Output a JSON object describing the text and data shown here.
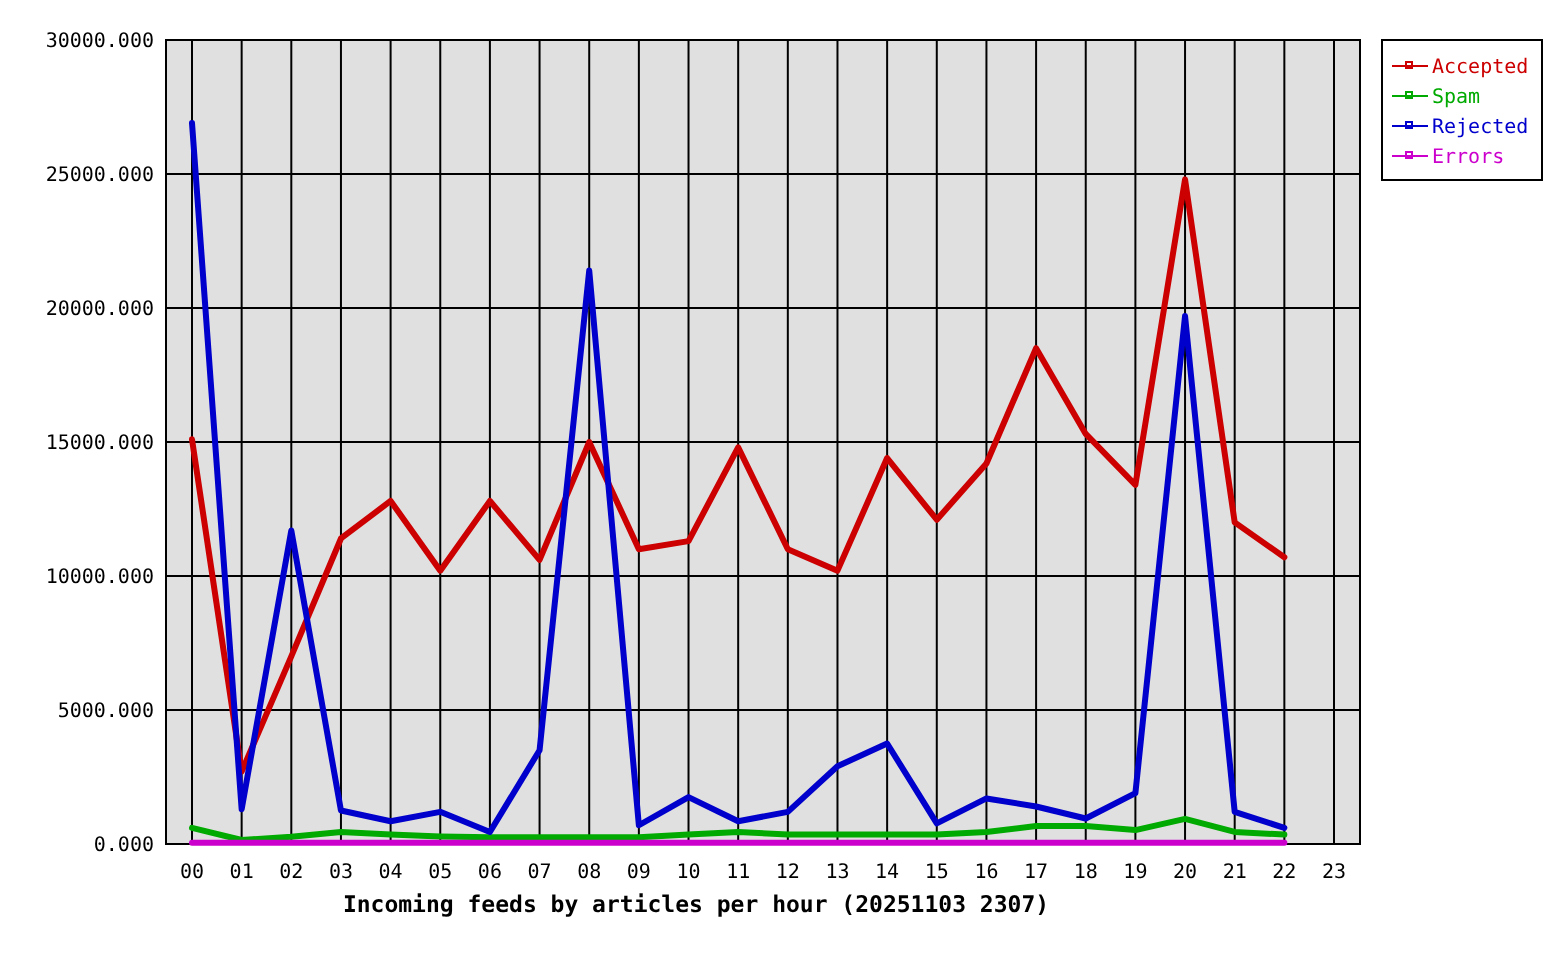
{
  "chart_data": {
    "type": "line",
    "xlabel": "Incoming feeds by articles per hour (20251103 2307)",
    "categories": [
      "00",
      "01",
      "02",
      "03",
      "04",
      "05",
      "06",
      "07",
      "08",
      "09",
      "10",
      "11",
      "12",
      "13",
      "14",
      "15",
      "16",
      "17",
      "18",
      "19",
      "20",
      "21",
      "22",
      "23"
    ],
    "ylim": [
      0,
      30000
    ],
    "yticks": [
      {
        "value": 0,
        "label": "0.000"
      },
      {
        "value": 5000,
        "label": "5000.000"
      },
      {
        "value": 10000,
        "label": "10000.000"
      },
      {
        "value": 15000,
        "label": "15000.000"
      },
      {
        "value": 20000,
        "label": "20000.000"
      },
      {
        "value": 25000,
        "label": "25000.000"
      },
      {
        "value": 30000,
        "label": "30000.000"
      }
    ],
    "grid": true,
    "legend": "top right",
    "series": [
      {
        "name": "Accepted",
        "color": "#cc0000",
        "values": [
          15100,
          2700,
          7000,
          11400,
          12800,
          10200,
          12800,
          10600,
          15000,
          11000,
          11300,
          14800,
          11000,
          10200,
          14400,
          12100,
          14200,
          18500,
          15300,
          13400,
          24800,
          12000,
          10700,
          null
        ]
      },
      {
        "name": "Spam",
        "color": "#00aa00",
        "values": [
          600,
          150,
          270,
          450,
          350,
          280,
          250,
          250,
          250,
          250,
          350,
          450,
          350,
          350,
          350,
          350,
          450,
          670,
          670,
          520,
          940,
          450,
          350,
          null
        ]
      },
      {
        "name": "Rejected",
        "color": "#0000cc",
        "values": [
          26900,
          1300,
          11700,
          1250,
          850,
          1200,
          450,
          3500,
          21400,
          700,
          1750,
          850,
          1200,
          2900,
          3750,
          770,
          1700,
          1400,
          950,
          1900,
          19700,
          1200,
          600,
          null
        ]
      },
      {
        "name": "Errors",
        "color": "#cc00cc",
        "values": [
          50,
          50,
          50,
          50,
          50,
          50,
          50,
          50,
          50,
          50,
          50,
          50,
          50,
          50,
          50,
          50,
          50,
          50,
          50,
          50,
          50,
          50,
          50,
          null
        ]
      }
    ]
  }
}
